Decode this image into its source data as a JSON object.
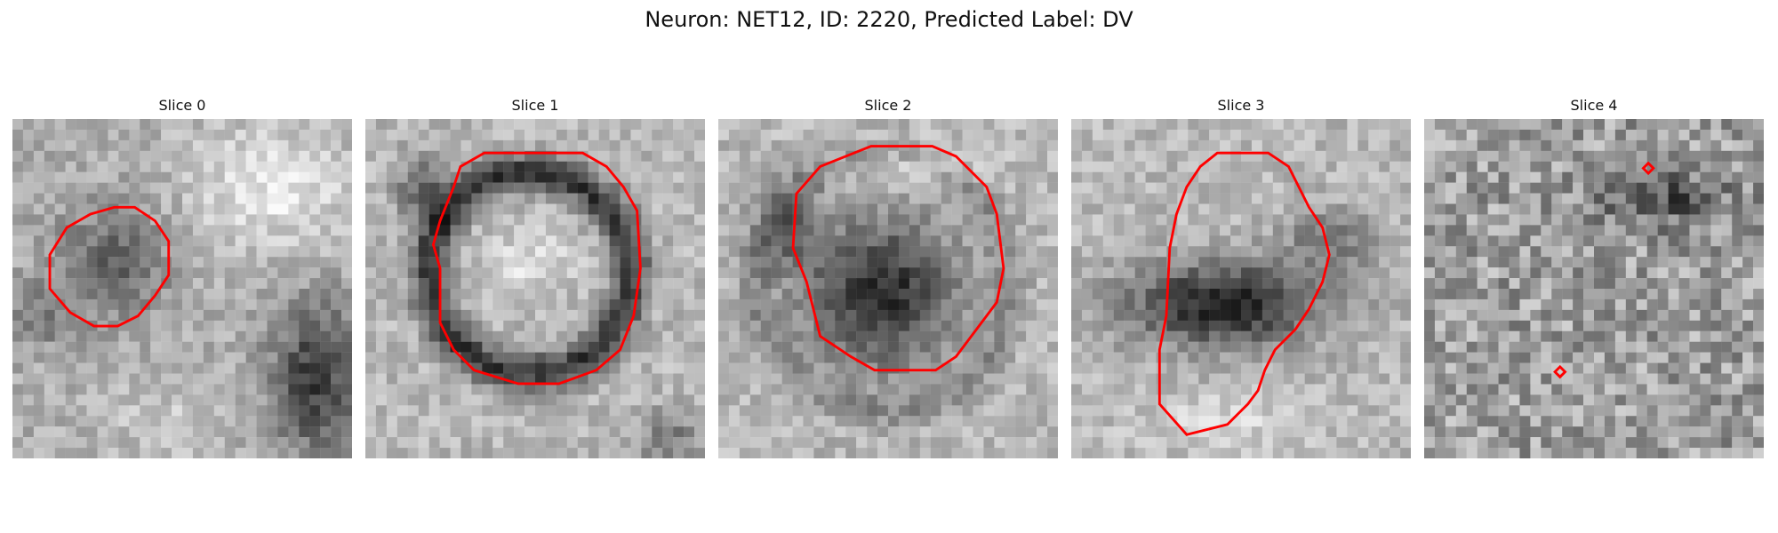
{
  "figure": {
    "title": "Neuron: NET12, ID: 2220, Predicted Label: DV"
  },
  "panels": [
    {
      "title": "Slice 0"
    },
    {
      "title": "Slice 1"
    },
    {
      "title": "Slice 2"
    },
    {
      "title": "Slice 3"
    },
    {
      "title": "Slice 4"
    }
  ],
  "colors": {
    "contour": "#ff0000"
  }
}
